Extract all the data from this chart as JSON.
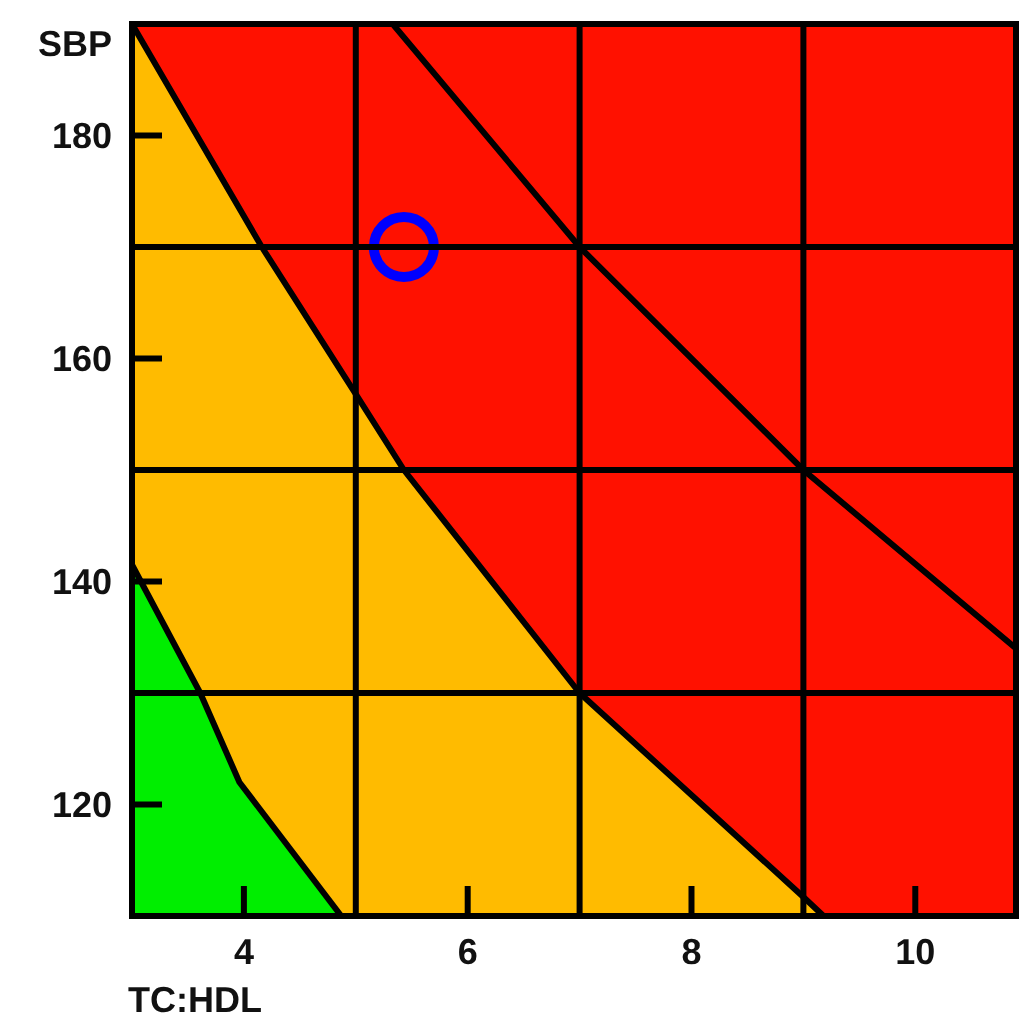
{
  "chart_data": {
    "type": "area",
    "xlabel": "TC:HDL",
    "ylabel": "SBP",
    "xlim": [
      3,
      10.9
    ],
    "ylim": [
      110,
      190
    ],
    "xticks": [
      4,
      6,
      8,
      10
    ],
    "yticks": [
      120,
      140,
      160,
      180
    ],
    "series": [
      {
        "color": "#ffbb00",
        "x": [
          3,
          4.16,
          5,
          5.43,
          7,
          9,
          9.18
        ],
        "values": [
          190,
          170,
          156.8,
          150,
          130,
          111.7,
          110
        ]
      },
      {
        "color": "#00ee00",
        "x": [
          3,
          3.61,
          3.96,
          4.87
        ],
        "values": [
          141.5,
          130,
          122,
          110
        ]
      },
      {
        "type": "line",
        "color": "#000000",
        "x": [
          5.33,
          7,
          9,
          10.9
        ],
        "values": [
          190,
          170,
          150,
          134
        ]
      },
      {
        "type": "scatter",
        "color": "#0000ff",
        "marker": "circle",
        "x": [
          5.43
        ],
        "values": [
          170
        ]
      }
    ],
    "bands": [
      {
        "axis": "y",
        "from": 110,
        "to": 190,
        "color": "#ff1100"
      }
    ],
    "ref_lines": [
      {
        "axis": "x",
        "value": 5,
        "color": "#000000"
      },
      {
        "axis": "x",
        "value": 7,
        "color": "#000000"
      },
      {
        "axis": "x",
        "value": 9,
        "color": "#000000"
      },
      {
        "axis": "y",
        "value": 130,
        "color": "#000000"
      },
      {
        "axis": "y",
        "value": 150,
        "color": "#000000"
      },
      {
        "axis": "y",
        "value": 170,
        "color": "#000000"
      }
    ]
  }
}
